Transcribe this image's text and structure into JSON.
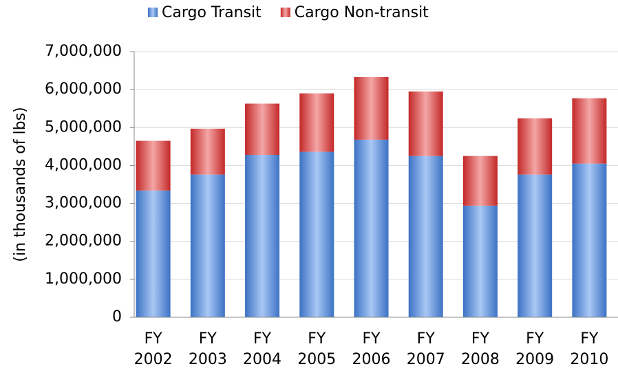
{
  "chart_data": {
    "type": "stacked_bar",
    "y_label": "(in thousands of lbs)",
    "categories": [
      "FY 2002",
      "FY 2003",
      "FY 2004",
      "FY 2005",
      "FY 2006",
      "FY 2007",
      "FY 2008",
      "FY 2009",
      "FY 2010"
    ],
    "series": [
      {
        "name": "Cargo Transit",
        "color": "#4a7fcf",
        "values": [
          3340000,
          3760000,
          4280000,
          4360000,
          4680000,
          4250000,
          2940000,
          3760000,
          4050000
        ]
      },
      {
        "name": "Cargo Non-transit",
        "color": "#d23a3a",
        "values": [
          1310000,
          1210000,
          1350000,
          1540000,
          1650000,
          1700000,
          1310000,
          1480000,
          1720000
        ]
      }
    ],
    "ylim": [
      0,
      7000000
    ],
    "yticks": [
      0,
      {
        "value": 1000000,
        "label": "1,000,000"
      },
      {
        "value": 2000000,
        "label": "2,000,000"
      },
      {
        "value": 3000000,
        "label": "3,000,000"
      },
      {
        "value": 4000000,
        "label": "4,000,000"
      },
      {
        "value": 5000000,
        "label": "5,000,000"
      },
      {
        "value": 6000000,
        "label": "6,000,000"
      },
      {
        "value": 7000000,
        "label": "7,000,000"
      }
    ],
    "grid": true
  }
}
